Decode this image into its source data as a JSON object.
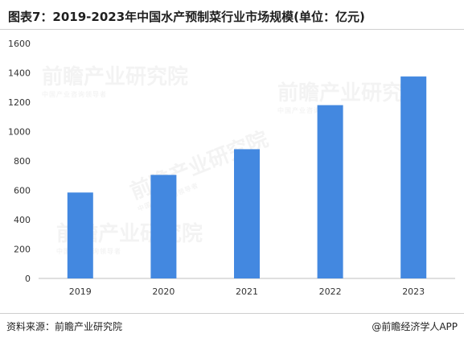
{
  "title": "图表7：2019-2023年中国水产预制菜行业市场规模(单位：亿元)",
  "source": "资料来源：前瞻产业研究院",
  "brand": "@前瞻经济学人APP",
  "watermarks": [
    {
      "text": "前瞻产业研究院",
      "sub": "中国产业咨询领导者"
    },
    {
      "text": "前瞻产业研究院",
      "sub": "中国产业咨询领导者"
    },
    {
      "text": "前瞻产业研究院",
      "sub": "中国产业咨询领导者"
    },
    {
      "text": "前瞻产业研究院",
      "sub": "中国产业咨询领导者"
    }
  ],
  "colors": {
    "bar": "#4388e0",
    "axis": "#bfbfbf",
    "tick_text": "#333333"
  },
  "chart_data": {
    "type": "bar",
    "categories": [
      "2019",
      "2020",
      "2021",
      "2022",
      "2023"
    ],
    "series": [
      {
        "values": [
          585,
          705,
          880,
          1180,
          1375
        ]
      }
    ],
    "ylim": [
      0,
      1600
    ],
    "yticks": [
      0,
      200,
      400,
      600,
      800,
      1000,
      1200,
      1400,
      1600
    ],
    "xlabel": "",
    "ylabel": "",
    "grid": false,
    "legend": "none"
  }
}
